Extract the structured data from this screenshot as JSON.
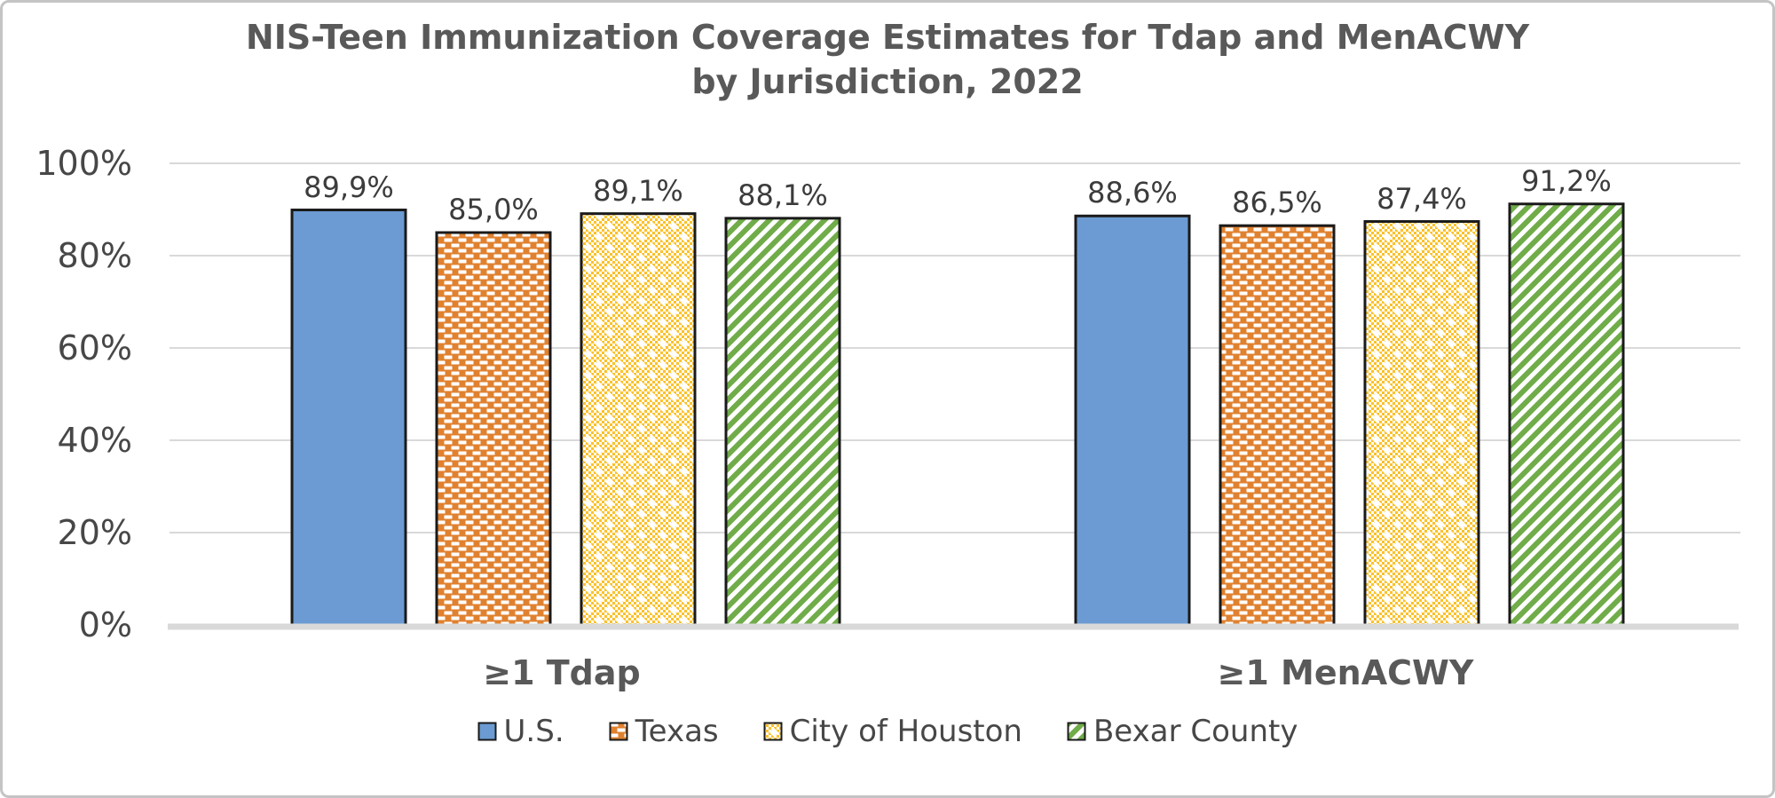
{
  "chart_data": {
    "type": "bar",
    "title": "NIS-Teen Immunization Coverage Estimates for Tdap and MenACWY",
    "subtitle": "by Jurisdiction, 2022",
    "categories": [
      "≥1 Tdap",
      "≥1 MenACWY"
    ],
    "series": [
      {
        "name": "U.S.",
        "pattern": "solid",
        "color": "#6B9BD2",
        "values": [
          89.9,
          88.6
        ],
        "value_labels": [
          "89,9%",
          "88,6%"
        ]
      },
      {
        "name": "Texas",
        "pattern": "brick-dashes",
        "color": "#E0812F",
        "values": [
          85.0,
          86.5
        ],
        "value_labels": [
          "85,0%",
          "86,5%"
        ]
      },
      {
        "name": "City of Houston",
        "pattern": "dotted-grid",
        "color": "#FBC12A",
        "values": [
          89.1,
          87.4
        ],
        "value_labels": [
          "89,1%",
          "87,4%"
        ]
      },
      {
        "name": "Bexar County",
        "pattern": "diagonal-stripes",
        "color": "#70AC49",
        "values": [
          88.1,
          91.2
        ],
        "value_labels": [
          "88,1%",
          "91,2%"
        ]
      }
    ],
    "y_axis": {
      "min": 0,
      "max": 100,
      "ticks": [
        "100%",
        "80%",
        "60%",
        "40%",
        "20%",
        "0%"
      ],
      "grid": true
    },
    "legend_position": "bottom",
    "style": {
      "bar_outline": "#1A1A1A",
      "gridline": "#D9D9D9",
      "axis_line": "#D9D9D9",
      "title_color": "#595959",
      "tick_color": "#474747",
      "data_label_color": "#3C3C3C",
      "background": "#FFFFFF",
      "frame_border": "#C4C4C4"
    }
  }
}
